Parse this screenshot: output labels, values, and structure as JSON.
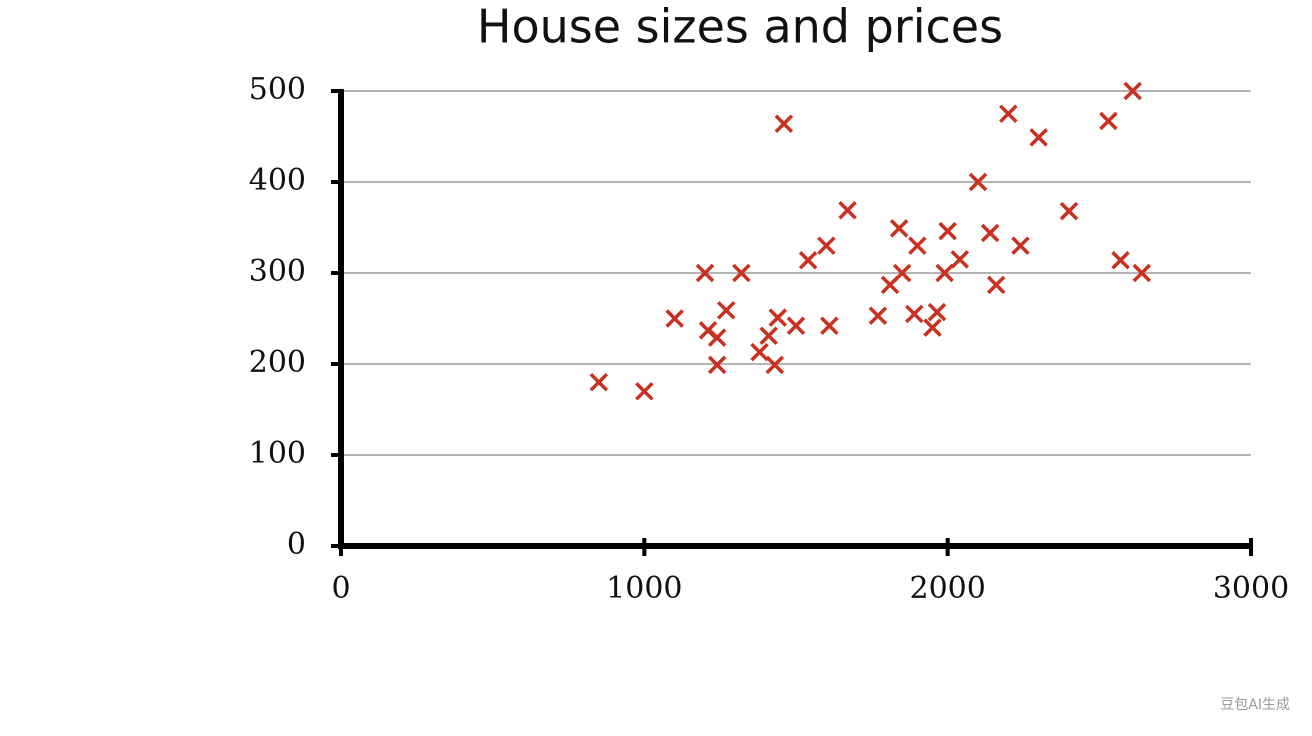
{
  "chart_data": {
    "type": "scatter",
    "title": "House sizes and prices",
    "x": [
      850,
      1000,
      1100,
      1200,
      1210,
      1240,
      1240,
      1270,
      1320,
      1380,
      1410,
      1430,
      1440,
      1460,
      1500,
      1540,
      1600,
      1610,
      1670,
      1770,
      1810,
      1840,
      1850,
      1890,
      1900,
      1950,
      1965,
      1990,
      2000,
      2040,
      2100,
      2140,
      2160,
      2200,
      2240,
      2300,
      2400,
      2530,
      2570,
      2610,
      2640
    ],
    "series": [
      {
        "color": "#c9301f",
        "values": [
          180,
          170,
          250,
          300,
          237,
          229,
          199,
          259,
          300,
          213,
          231,
          199,
          251,
          464,
          242,
          314,
          330,
          242,
          369,
          253,
          287,
          349,
          300,
          255,
          330,
          240,
          257,
          300,
          346,
          315,
          400,
          344,
          287,
          475,
          330,
          449,
          368,
          467,
          314,
          500,
          300
        ]
      }
    ],
    "xlim": [
      0,
      3000
    ],
    "xticks": [
      0,
      1000,
      2000,
      3000
    ],
    "ylim": [
      0,
      500
    ],
    "yticks": [
      0,
      100,
      200,
      300,
      400,
      500
    ],
    "grid": true,
    "watermark": "豆包AI生成"
  }
}
